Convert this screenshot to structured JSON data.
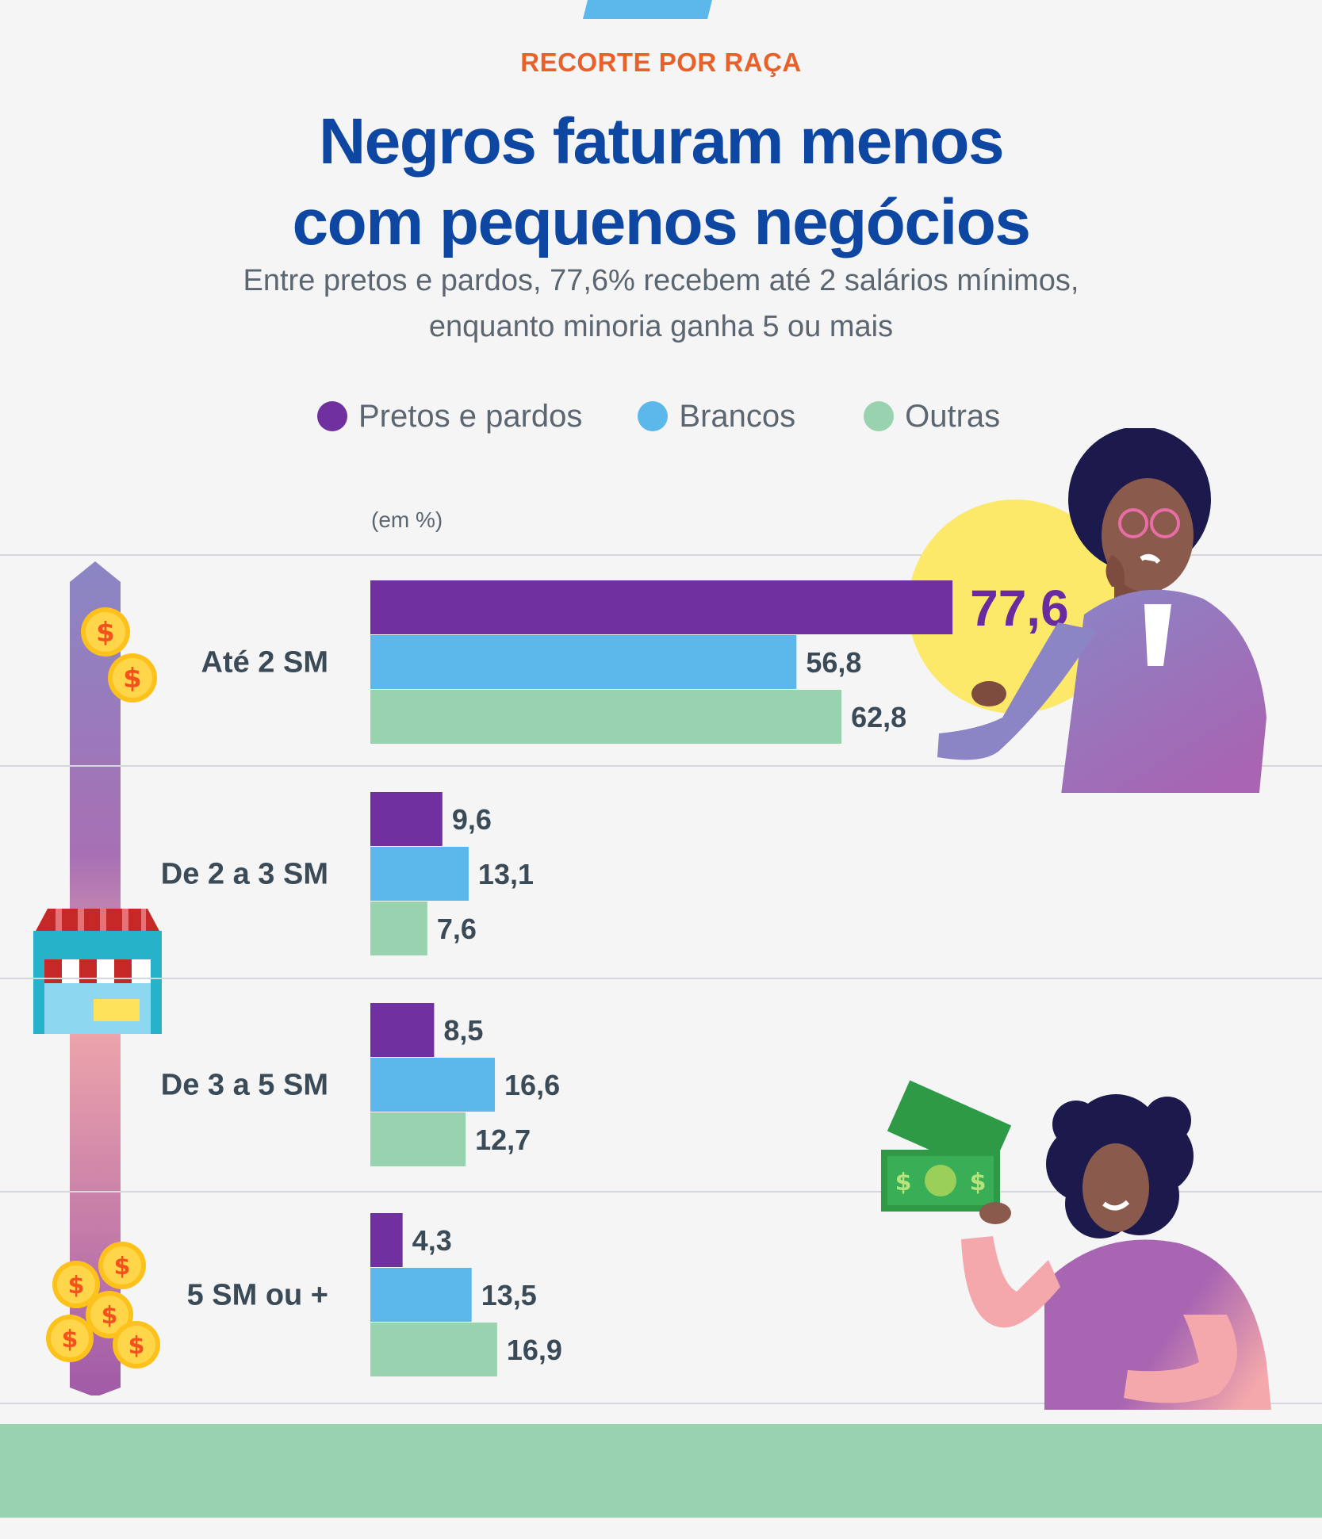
{
  "header": {
    "kicker": "RECORTE POR RAÇA",
    "title_line1": "Negros faturam menos",
    "title_line2": "com pequenos negócios",
    "subtitle_line1": "Entre pretos e pardos, 77,6% recebem até 2 salários mínimos,",
    "subtitle_line2": "enquanto minoria ganha 5 ou mais"
  },
  "legend": [
    {
      "label": "Pretos e pardos",
      "color": "#7030a0"
    },
    {
      "label": "Brancos",
      "color": "#5cb8ea"
    },
    {
      "label": "Outras",
      "color": "#98d2ae"
    }
  ],
  "unit_label": "(em %)",
  "colors": {
    "highlight_circle": "#fce96a",
    "highlight_text": "#6a2aa0",
    "footer": "#98d2ae",
    "accent": "#e8612b",
    "title": "#0d47a1"
  },
  "icons": [
    "coin-icon",
    "store-icon",
    "coins-pile-icon",
    "money-bills-icon"
  ],
  "chart_data": {
    "type": "bar",
    "orientation": "horizontal",
    "categories": [
      "Até 2 SM",
      "De 2 a 3 SM",
      "De 3 a 5 SM",
      "5 SM ou +"
    ],
    "series": [
      {
        "name": "Pretos e pardos",
        "values": [
          77.6,
          9.6,
          8.5,
          4.3
        ],
        "labels": [
          "77,6",
          "9,6",
          "8,5",
          "4,3"
        ]
      },
      {
        "name": "Brancos",
        "values": [
          56.8,
          13.1,
          16.6,
          13.5
        ],
        "labels": [
          "56,8",
          "13,1",
          "16,6",
          "13,5"
        ]
      },
      {
        "name": "Outras",
        "values": [
          62.8,
          7.6,
          12.7,
          16.9
        ],
        "labels": [
          "62,8",
          "7,6",
          "12,7",
          "16,9"
        ]
      }
    ],
    "ylabel": "(em %)",
    "xlim": [
      0,
      100
    ],
    "grid": true,
    "legend_position": "top"
  }
}
